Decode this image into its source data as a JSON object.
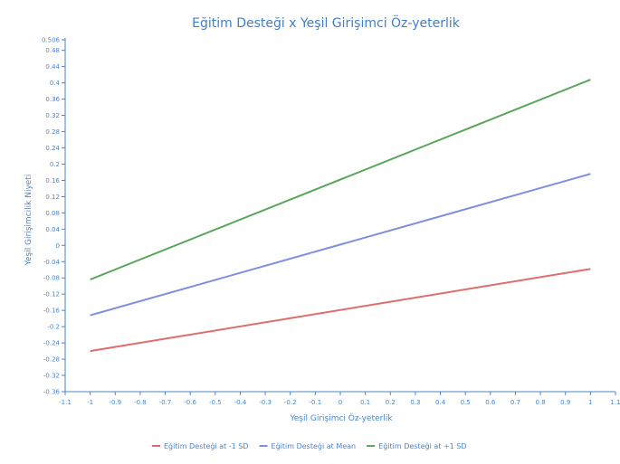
{
  "chart_data": {
    "type": "line",
    "title": "Eğitim Desteği x Yeşil Girişimci Öz-yeterlik",
    "xlabel": "Yeşil Girişimci Öz-yeterlik",
    "ylabel": "Yeşil Girişimcilik Niyeti",
    "xlim": [
      -1.1,
      1.1
    ],
    "ylim": [
      -0.36,
      0.506
    ],
    "x_ticks": [
      "-1.1",
      "-1",
      "-0.9",
      "-0.8",
      "-0.7",
      "-0.6",
      "-0.5",
      "-0.4",
      "-0.3",
      "-0.2",
      "-0.1",
      "0",
      "0.1",
      "0.2",
      "0.3",
      "0.4",
      "0.5",
      "0.6",
      "0.7",
      "0.8",
      "0.9",
      "1",
      "1.1"
    ],
    "y_ticks": [
      "0.506",
      "0.48",
      "0.44",
      "0.4",
      "0.36",
      "0.32",
      "0.28",
      "0.24",
      "0.2",
      "0.16",
      "0.12",
      "0.08",
      "0.04",
      "0",
      "-0.04",
      "-0.08",
      "-0.12",
      "-0.16",
      "-0.2",
      "-0.24",
      "-0.28",
      "-0.32",
      "-0.36"
    ],
    "grid": false,
    "legend_position": "bottom",
    "series": [
      {
        "name": "Eğitim Desteği at -1 SD",
        "color": "#e06c6c",
        "x": [
          -1,
          1
        ],
        "y": [
          -0.26,
          -0.058
        ]
      },
      {
        "name": "Eğitim Desteği at Mean",
        "color": "#7f8fe0",
        "x": [
          -1,
          1
        ],
        "y": [
          -0.172,
          0.176
        ]
      },
      {
        "name": "Eğitim Desteği at +1 SD",
        "color": "#5aa65a",
        "x": [
          -1,
          1
        ],
        "y": [
          -0.084,
          0.408
        ]
      }
    ]
  }
}
